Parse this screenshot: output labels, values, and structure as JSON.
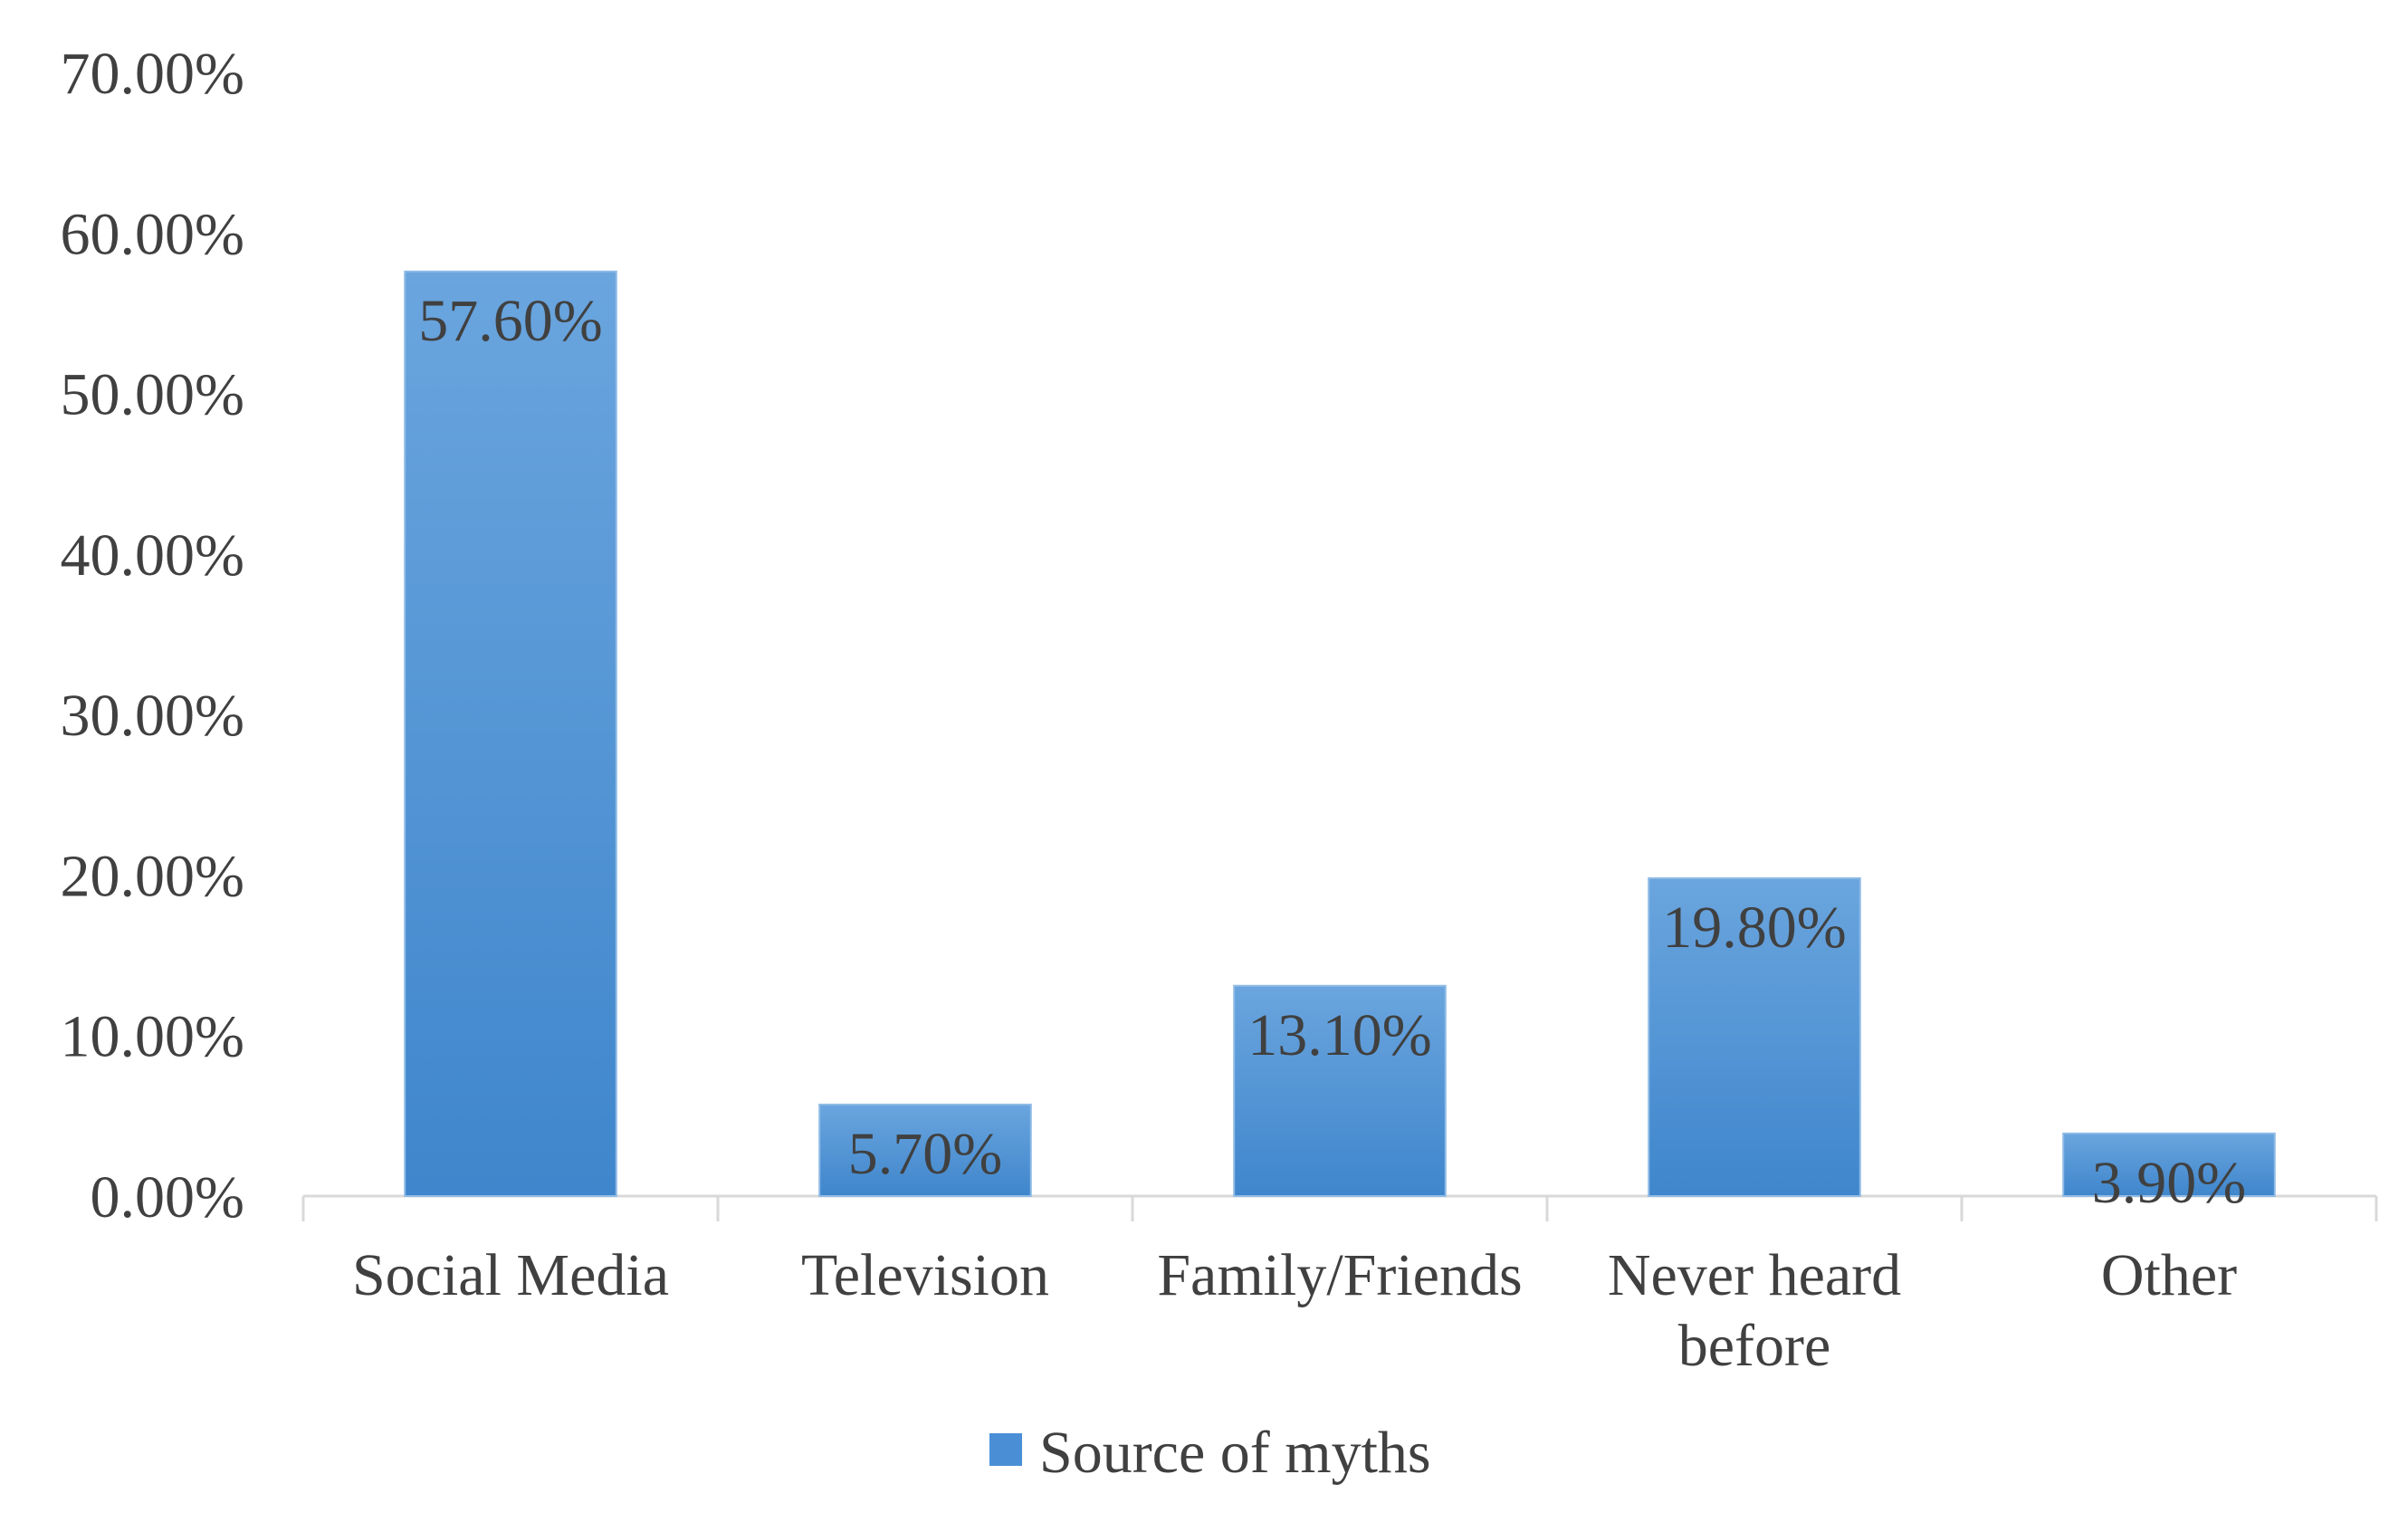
{
  "chart_data": {
    "type": "bar",
    "title": "",
    "xlabel": "",
    "ylabel": "",
    "categories": [
      "Social Media",
      "Television",
      "Family/Friends",
      "Never heard before",
      "Other"
    ],
    "category_lines": [
      [
        "Social Media"
      ],
      [
        "Television"
      ],
      [
        "Family/Friends"
      ],
      [
        "Never heard",
        "before"
      ],
      [
        "Other"
      ]
    ],
    "series": [
      {
        "name": "Source of myths",
        "values": [
          57.6,
          5.7,
          13.1,
          19.8,
          3.9
        ],
        "labels": [
          "57.60%",
          "5.70%",
          "13.10%",
          "19.80%",
          "3.90%"
        ],
        "color": "#4a8fd6"
      }
    ],
    "ylim": [
      0,
      70
    ],
    "y_ticks": [
      0,
      10,
      20,
      30,
      40,
      50,
      60,
      70
    ],
    "y_tick_labels": [
      "0.00%",
      "10.00%",
      "20.00%",
      "30.00%",
      "40.00%",
      "50.00%",
      "60.00%",
      "70.00%"
    ],
    "grid": false,
    "legend_position": "bottom-center",
    "colors": {
      "bar_top": "#6aa5de",
      "bar_bottom": "#3f86cc",
      "text": "#404040",
      "axis": "#d9d9d9"
    }
  }
}
